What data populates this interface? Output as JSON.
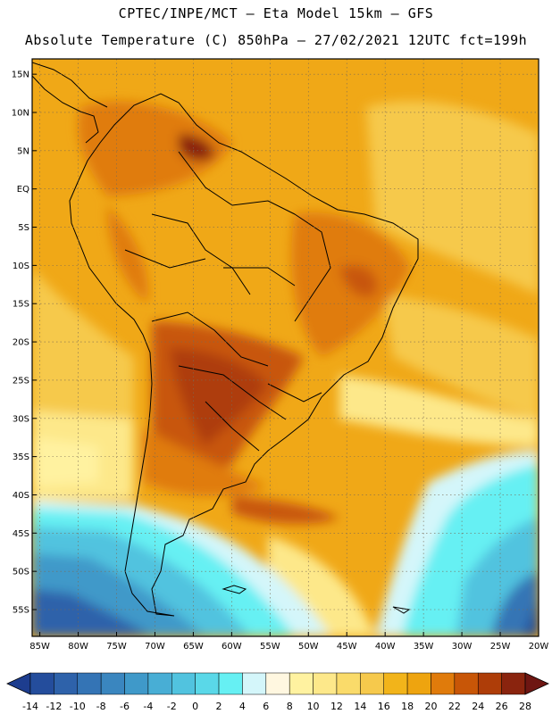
{
  "header": {
    "line1": "CPTEC/INPE/MCT –  Eta Model 15km – GFS",
    "line2": "Absolute Temperature (C) 850hPa – 27/02/2021 12UTC fct=199h"
  },
  "map": {
    "lat_labels": [
      "15N",
      "10N",
      "5N",
      "EQ",
      "5S",
      "10S",
      "15S",
      "20S",
      "25S",
      "30S",
      "35S",
      "40S",
      "45S",
      "50S",
      "55S"
    ],
    "lon_labels": [
      "85W",
      "80W",
      "75W",
      "70W",
      "65W",
      "60W",
      "55W",
      "50W",
      "45W",
      "40W",
      "35W",
      "30W",
      "25W",
      "20W"
    ],
    "lon_extent_deg": [
      -86,
      -20
    ],
    "lat_extent_deg": [
      17,
      -58.5
    ],
    "gridlines": "dotted"
  },
  "colorbar": {
    "labels": [
      "-14",
      "-12",
      "-10",
      "-8",
      "-6",
      "-4",
      "-2",
      "0",
      "2",
      "4",
      "6",
      "8",
      "10",
      "12",
      "14",
      "16",
      "18",
      "20",
      "22",
      "24",
      "26",
      "28"
    ],
    "colors": [
      "#1d3d8f",
      "#244d9c",
      "#2e62aa",
      "#3474b5",
      "#3a86bf",
      "#3f99c9",
      "#48aed5",
      "#51c3df",
      "#5ad8e8",
      "#66f0f3",
      "#d4f6fa",
      "#fff7e0",
      "#fff2a0",
      "#fde88a",
      "#fadb6a",
      "#f6c94c",
      "#f2b41a",
      "#eea40f",
      "#e07b0b",
      "#c85607",
      "#ae3d08",
      "#8a240e",
      "#6e1612"
    ]
  }
}
